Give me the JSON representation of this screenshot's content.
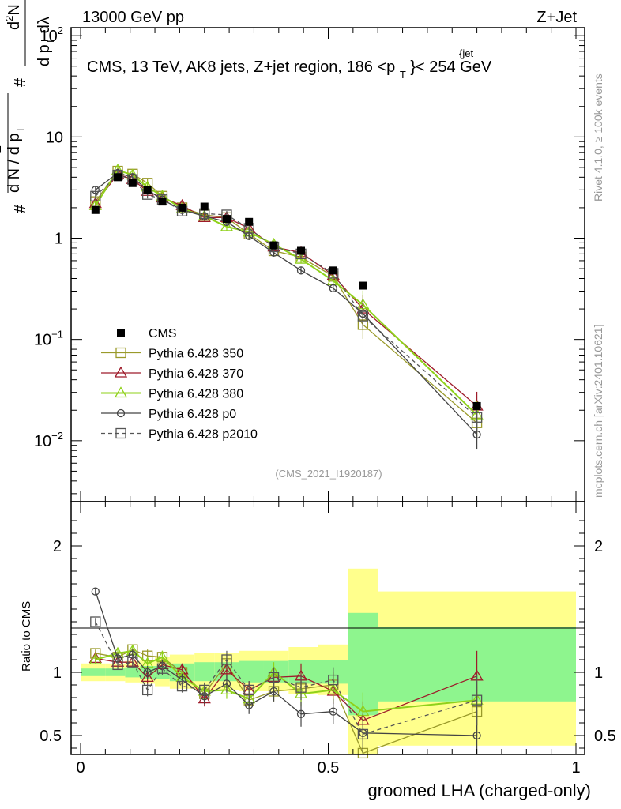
{
  "header": {
    "left": "13000 GeV pp",
    "right": "Z+Jet",
    "title_prefix": "CMS, 13 TeV, AK8 jets, Z+jet region, 186 <p",
    "title_sup": "{jet",
    "title_sub": "T",
    "title_suffix": "}< 254 GeV",
    "analysis_tag": "(CMS_2021_I1920187)",
    "side_rivet": "Rivet 4.1.0, ≥ 100k events",
    "side_url": "mcplots.cern.ch [arXiv:2401.10621]"
  },
  "ylabel_main": {
    "hash1": "#",
    "one": "1",
    "denom": "d N / d p",
    "denom_sub": "T",
    "hash2": "#",
    "num": "d",
    "num_sup": "2",
    "num_n": "N",
    "den2": "d p",
    "den2_sub": "T",
    "den2_end": "dλ"
  },
  "ylabel_ratio": "Ratio to CMS",
  "xlabel": "groomed LHA (charged-only)",
  "colors": {
    "cms": "#000000",
    "p350": "#9a9a2a",
    "p370": "#9e1b2a",
    "p380": "#8fd11a",
    "p0": "#444444",
    "p2010": "#555555",
    "band_inner": "#8ef58e",
    "band_outer": "#ffff8c"
  },
  "chart_data": [
    {
      "type": "line",
      "title": "CMS, 13 TeV, AK8 jets, Z+jet region, 186 < pT jet < 254 GeV",
      "xlabel": "groomed LHA (charged-only)",
      "ylabel": "1/(dN/dpT) d2N/(dpT dλ)",
      "yscale": "log",
      "xlim": [
        0,
        1
      ],
      "ylim": [
        0.0025,
        120
      ],
      "y_ticks": [
        {
          "value": 0.01,
          "base": "10",
          "exp": "−2"
        },
        {
          "value": 0.1,
          "base": "10",
          "exp": "−1"
        },
        {
          "value": 1,
          "label": "1"
        },
        {
          "value": 10,
          "label": "10"
        },
        {
          "value": 100,
          "base": "10",
          "exp": "2"
        }
      ],
      "x": [
        0.03,
        0.075,
        0.105,
        0.135,
        0.165,
        0.205,
        0.25,
        0.295,
        0.34,
        0.39,
        0.445,
        0.51,
        0.57,
        0.8
      ],
      "series": [
        {
          "name": "CMS",
          "key": "cms",
          "marker": "filled-square",
          "values": [
            1.9,
            4.0,
            3.5,
            3.0,
            2.3,
            2.0,
            2.05,
            1.55,
            1.45,
            0.85,
            0.75,
            0.48,
            0.34,
            0.022
          ]
        },
        {
          "name": "Pythia 6.428 350",
          "key": "p350",
          "marker": "open-square",
          "values": [
            2.3,
            4.6,
            4.3,
            3.5,
            2.6,
            2.0,
            1.7,
            1.6,
            1.1,
            0.75,
            0.65,
            0.42,
            0.14,
            0.015
          ]
        },
        {
          "name": "Pythia 6.428 370",
          "key": "p370",
          "marker": "open-triangle",
          "values": [
            2.2,
            4.3,
            3.8,
            2.9,
            2.5,
            2.1,
            1.6,
            1.6,
            1.25,
            0.82,
            0.72,
            0.43,
            0.2,
            0.022
          ]
        },
        {
          "name": "Pythia 6.428 380",
          "key": "p380",
          "marker": "open-triangle",
          "values": [
            2.1,
            4.7,
            4.2,
            3.2,
            2.6,
            1.95,
            1.65,
            1.3,
            1.15,
            0.87,
            0.62,
            0.38,
            0.22,
            0.018
          ]
        },
        {
          "name": "Pythia 6.428 p0",
          "key": "p0",
          "marker": "open-circle",
          "values": [
            3.0,
            4.4,
            4.0,
            3.0,
            2.4,
            1.9,
            1.65,
            1.45,
            1.05,
            0.72,
            0.48,
            0.32,
            0.18,
            0.0115
          ]
        },
        {
          "name": "Pythia 6.428 p2010",
          "key": "p2010",
          "marker": "open-square",
          "dashed": true,
          "values": [
            2.6,
            4.2,
            3.8,
            2.7,
            2.4,
            1.85,
            1.75,
            1.7,
            1.25,
            0.82,
            0.7,
            0.45,
            0.17,
            0.017
          ]
        }
      ]
    },
    {
      "type": "line",
      "ylabel": "Ratio to CMS",
      "xlabel": "groomed LHA (charged-only)",
      "xlim": [
        0,
        1
      ],
      "ylim": [
        0.35,
        2.35
      ],
      "y_ticks": [
        0.5,
        1,
        2
      ],
      "x_ticks": [
        0,
        0.5,
        1
      ],
      "x": [
        0.03,
        0.075,
        0.105,
        0.135,
        0.165,
        0.205,
        0.25,
        0.295,
        0.34,
        0.39,
        0.445,
        0.51,
        0.57,
        0.8
      ],
      "series": [
        {
          "name": "Pythia 6.428 350",
          "key": "p350",
          "values": [
            1.15,
            1.12,
            1.18,
            1.13,
            1.12,
            1.0,
            0.83,
            1.07,
            0.78,
            0.85,
            0.87,
            0.9,
            0.36,
            0.69
          ]
        },
        {
          "name": "Pythia 6.428 370",
          "key": "p370",
          "values": [
            1.11,
            1.08,
            1.08,
            0.96,
            1.06,
            1.02,
            0.79,
            1.02,
            0.86,
            0.96,
            0.97,
            0.85,
            0.62,
            0.97
          ]
        },
        {
          "name": "Pythia 6.428 380",
          "key": "p380",
          "values": [
            1.1,
            1.15,
            1.17,
            1.07,
            1.12,
            0.96,
            0.85,
            0.86,
            0.79,
            1.0,
            0.83,
            0.86,
            0.69,
            0.78
          ]
        },
        {
          "name": "Pythia 6.428 p0",
          "key": "p0",
          "values": [
            1.64,
            1.11,
            1.14,
            1.0,
            1.05,
            0.94,
            0.81,
            0.91,
            0.74,
            0.85,
            0.67,
            0.69,
            0.52,
            0.5
          ]
        },
        {
          "name": "Pythia 6.428 p2010",
          "key": "p2010",
          "values": [
            1.4,
            1.06,
            1.08,
            0.86,
            1.03,
            0.89,
            0.86,
            1.1,
            0.86,
            0.96,
            0.88,
            0.94,
            0.51,
            0.78
          ]
        }
      ],
      "error_bars": {
        "x": [
          0.03,
          0.075,
          0.105,
          0.135,
          0.165,
          0.205,
          0.25,
          0.295,
          0.34,
          0.39,
          0.445,
          0.51,
          0.57,
          0.8
        ],
        "half_width": [
          0.03,
          0.04,
          0.04,
          0.05,
          0.05,
          0.05,
          0.06,
          0.07,
          0.07,
          0.08,
          0.1,
          0.1,
          0.15,
          0.2
        ]
      },
      "bands": {
        "x_edges": [
          0,
          0.05,
          0.09,
          0.12,
          0.15,
          0.18,
          0.23,
          0.27,
          0.32,
          0.37,
          0.42,
          0.48,
          0.54,
          0.6,
          1.0
        ],
        "inner_lo": [
          0.97,
          0.97,
          0.96,
          0.95,
          0.95,
          0.93,
          0.93,
          0.93,
          0.92,
          0.92,
          0.91,
          0.91,
          0.66,
          0.77
        ],
        "inner_hi": [
          1.03,
          1.03,
          1.04,
          1.05,
          1.05,
          1.07,
          1.08,
          1.08,
          1.09,
          1.09,
          1.1,
          1.1,
          1.47,
          1.36
        ],
        "outer_lo": [
          0.93,
          0.93,
          0.92,
          0.91,
          0.89,
          0.87,
          0.86,
          0.86,
          0.85,
          0.85,
          0.83,
          0.82,
          0.34,
          0.42
        ],
        "outer_hi": [
          1.07,
          1.07,
          1.09,
          1.1,
          1.12,
          1.14,
          1.15,
          1.15,
          1.17,
          1.17,
          1.2,
          1.22,
          1.82,
          1.64
        ]
      }
    }
  ]
}
